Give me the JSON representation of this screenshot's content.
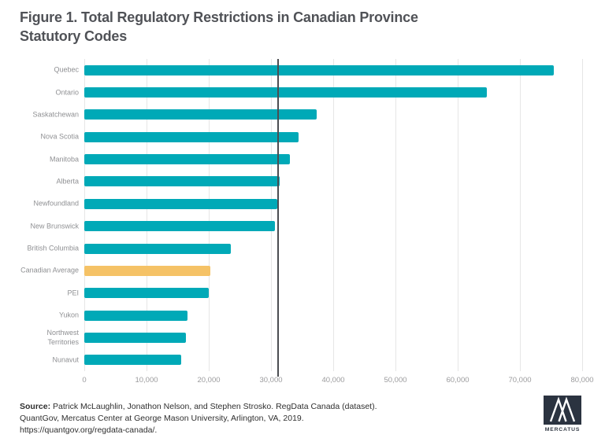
{
  "title": "Figure 1. Total Regulatory Restrictions in Canadian Province Statutory Codes",
  "chart_data": {
    "type": "bar",
    "orientation": "horizontal",
    "title": "Figure 1. Total Regulatory Restrictions in Canadian Province Statutory Codes",
    "categories": [
      "Quebec",
      "Ontario",
      "Saskatchewan",
      "Nova Scotia",
      "Manitoba",
      "Alberta",
      "Newfoundland",
      "New Brunswick",
      "British Columbia",
      "Canadian Average",
      "PEI",
      "Yukon",
      "Northwest\nTerritories",
      "Nunavut"
    ],
    "values": [
      75400,
      64700,
      37300,
      34400,
      33000,
      31400,
      31000,
      30600,
      23500,
      20300,
      20000,
      16600,
      16300,
      15600
    ],
    "bar_color": "#00a9b7",
    "highlight_color": "#f5c266",
    "highlight_index": 9,
    "xlim": [
      0,
      80000
    ],
    "x_ticks": [
      0,
      10000,
      20000,
      30000,
      40000,
      50000,
      60000,
      70000,
      80000
    ],
    "x_tick_labels": [
      "0",
      "10,000",
      "20,000",
      "30,000",
      "40,000",
      "50,000",
      "60,000",
      "70,000",
      "80,000"
    ],
    "reference_line_value": 31100,
    "grid": "vertical",
    "legend": "none"
  },
  "footer": {
    "source_label": "Source:",
    "line1": " Patrick McLaughlin, Jonathon Nelson, and Stephen Strosko. RegData Canada (dataset).",
    "line2": "QuantGov, Mercatus Center at George Mason University, Arlington, VA, 2019.",
    "line3": "https://quantgov.org/regdata-canada/."
  },
  "logo": {
    "text": "MERCATUS"
  }
}
